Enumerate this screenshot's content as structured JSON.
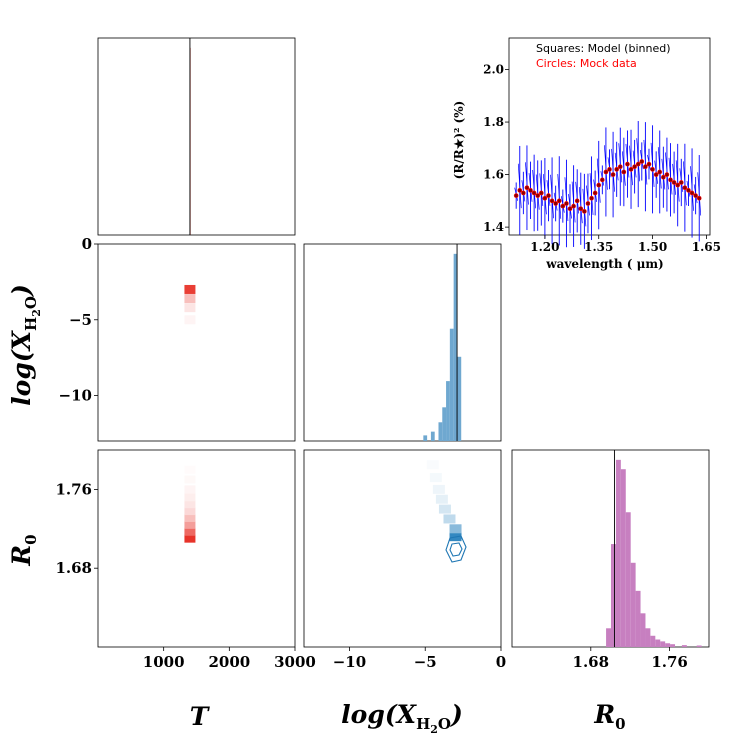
{
  "labels": {
    "T": "T",
    "log": "log(X",
    "h2o_sub": "H",
    "h2o_sub2": "2",
    "h2o_sub3": "O",
    "close": ")",
    "R0": "R",
    "R0_sub": "0"
  },
  "chart_data": [
    {
      "type": "histogram",
      "title": "",
      "xlabel": "T",
      "xlim": [
        0,
        3000
      ],
      "truth": 1400,
      "bins": [
        {
          "x": 1400,
          "count": 1
        }
      ]
    },
    {
      "type": "line",
      "title": "",
      "xlabel": "wavelength ( μm)",
      "ylabel": "(R/R★)² (%)",
      "xlim": [
        1.1,
        1.66
      ],
      "ylim": [
        1.37,
        2.12
      ],
      "xticks": [
        "1.20",
        "1.35",
        "1.50",
        "1.65"
      ],
      "yticks": [
        "1.4",
        "1.6",
        "1.8",
        "2.0"
      ],
      "legend": [
        "Squares: Model (binned)",
        "Circles: Mock data"
      ],
      "legend_colors": [
        "#000000",
        "#ff0000"
      ],
      "series_color": "#0000ff",
      "wavelengths": [
        1.12,
        1.13,
        1.14,
        1.15,
        1.16,
        1.17,
        1.18,
        1.19,
        1.2,
        1.21,
        1.22,
        1.23,
        1.24,
        1.25,
        1.26,
        1.27,
        1.28,
        1.29,
        1.3,
        1.31,
        1.32,
        1.33,
        1.34,
        1.35,
        1.36,
        1.37,
        1.38,
        1.39,
        1.4,
        1.41,
        1.42,
        1.43,
        1.44,
        1.45,
        1.46,
        1.47,
        1.48,
        1.49,
        1.5,
        1.51,
        1.52,
        1.53,
        1.54,
        1.55,
        1.56,
        1.57,
        1.58,
        1.59,
        1.6,
        1.61,
        1.62,
        1.63
      ],
      "depths": [
        1.52,
        1.54,
        1.53,
        1.55,
        1.54,
        1.53,
        1.52,
        1.53,
        1.51,
        1.52,
        1.5,
        1.49,
        1.5,
        1.48,
        1.49,
        1.47,
        1.48,
        1.5,
        1.47,
        1.46,
        1.49,
        1.51,
        1.53,
        1.56,
        1.58,
        1.61,
        1.62,
        1.6,
        1.62,
        1.63,
        1.61,
        1.64,
        1.62,
        1.63,
        1.64,
        1.65,
        1.63,
        1.64,
        1.62,
        1.6,
        1.61,
        1.59,
        1.6,
        1.58,
        1.57,
        1.56,
        1.57,
        1.55,
        1.54,
        1.53,
        1.52,
        1.51
      ]
    },
    {
      "type": "heatmap",
      "title": "",
      "xlabel": "",
      "ylabel": "log(X_H2O)",
      "xlim": [
        0,
        3000
      ],
      "ylim": [
        -13,
        0
      ],
      "yticks": [
        "0",
        "−5",
        "−10"
      ],
      "cells": [
        {
          "x": 1400,
          "y": -3,
          "w": 0.9
        },
        {
          "x": 1400,
          "y": -3.6,
          "w": 0.3
        },
        {
          "x": 1400,
          "y": -4.2,
          "w": 0.12
        },
        {
          "x": 1400,
          "y": -5,
          "w": 0.05
        }
      ]
    },
    {
      "type": "histogram",
      "title": "",
      "xlabel": "",
      "xlim": [
        -13,
        0
      ],
      "truth": -2.9,
      "bins": [
        {
          "x": -5.0,
          "count": 0.03
        },
        {
          "x": -4.5,
          "count": 0.05
        },
        {
          "x": -4.0,
          "count": 0.1
        },
        {
          "x": -3.75,
          "count": 0.18
        },
        {
          "x": -3.5,
          "count": 0.32
        },
        {
          "x": -3.25,
          "count": 0.6
        },
        {
          "x": -3.0,
          "count": 1.0
        },
        {
          "x": -2.75,
          "count": 0.45
        }
      ]
    },
    {
      "type": "heatmap",
      "title": "",
      "xlabel": "T",
      "ylabel": "R0",
      "xlim": [
        0,
        3000
      ],
      "ylim": [
        1.6,
        1.8
      ],
      "xticks": [
        "1000",
        "2000",
        "3000"
      ],
      "yticks": [
        "1.76",
        "1.68"
      ],
      "cells": [
        {
          "x": 1400,
          "y": 1.71,
          "w": 0.95
        },
        {
          "x": 1400,
          "y": 1.717,
          "w": 0.7
        },
        {
          "x": 1400,
          "y": 1.724,
          "w": 0.45
        },
        {
          "x": 1400,
          "y": 1.731,
          "w": 0.3
        },
        {
          "x": 1400,
          "y": 1.738,
          "w": 0.18
        },
        {
          "x": 1400,
          "y": 1.745,
          "w": 0.12
        },
        {
          "x": 1400,
          "y": 1.752,
          "w": 0.08
        },
        {
          "x": 1400,
          "y": 1.76,
          "w": 0.05
        },
        {
          "x": 1400,
          "y": 1.77,
          "w": 0.03
        },
        {
          "x": 1400,
          "y": 1.78,
          "w": 0.02
        }
      ]
    },
    {
      "type": "heatmap",
      "title": "",
      "xlabel": "log(X_H2O)",
      "ylabel": "",
      "xlim": [
        -13,
        0
      ],
      "ylim": [
        1.6,
        1.8
      ],
      "xticks": [
        "−10",
        "−5",
        "0"
      ],
      "cells": [
        {
          "x": -3.0,
          "y": 1.712,
          "w": 0.95
        },
        {
          "x": -3.0,
          "y": 1.72,
          "w": 0.55
        },
        {
          "x": -3.4,
          "y": 1.73,
          "w": 0.3
        },
        {
          "x": -3.7,
          "y": 1.74,
          "w": 0.2
        },
        {
          "x": -3.9,
          "y": 1.75,
          "w": 0.12
        },
        {
          "x": -4.1,
          "y": 1.76,
          "w": 0.08
        },
        {
          "x": -4.3,
          "y": 1.772,
          "w": 0.05
        },
        {
          "x": -4.5,
          "y": 1.785,
          "w": 0.03
        }
      ]
    },
    {
      "type": "histogram",
      "title": "",
      "xlabel": "R0",
      "xlim": [
        1.6,
        1.8
      ],
      "truth": 1.704,
      "xticks": [
        "1.68",
        "1.76"
      ],
      "bins": [
        {
          "x": 1.698,
          "count": 0.1
        },
        {
          "x": 1.703,
          "count": 0.55
        },
        {
          "x": 1.708,
          "count": 1.0
        },
        {
          "x": 1.713,
          "count": 0.95
        },
        {
          "x": 1.718,
          "count": 0.72
        },
        {
          "x": 1.723,
          "count": 0.45
        },
        {
          "x": 1.728,
          "count": 0.3
        },
        {
          "x": 1.733,
          "count": 0.18
        },
        {
          "x": 1.738,
          "count": 0.1
        },
        {
          "x": 1.743,
          "count": 0.06
        },
        {
          "x": 1.748,
          "count": 0.04
        },
        {
          "x": 1.753,
          "count": 0.03
        },
        {
          "x": 1.758,
          "count": 0.02
        },
        {
          "x": 1.763,
          "count": 0.015
        },
        {
          "x": 1.775,
          "count": 0.01
        },
        {
          "x": 1.79,
          "count": 0.008
        }
      ]
    }
  ]
}
